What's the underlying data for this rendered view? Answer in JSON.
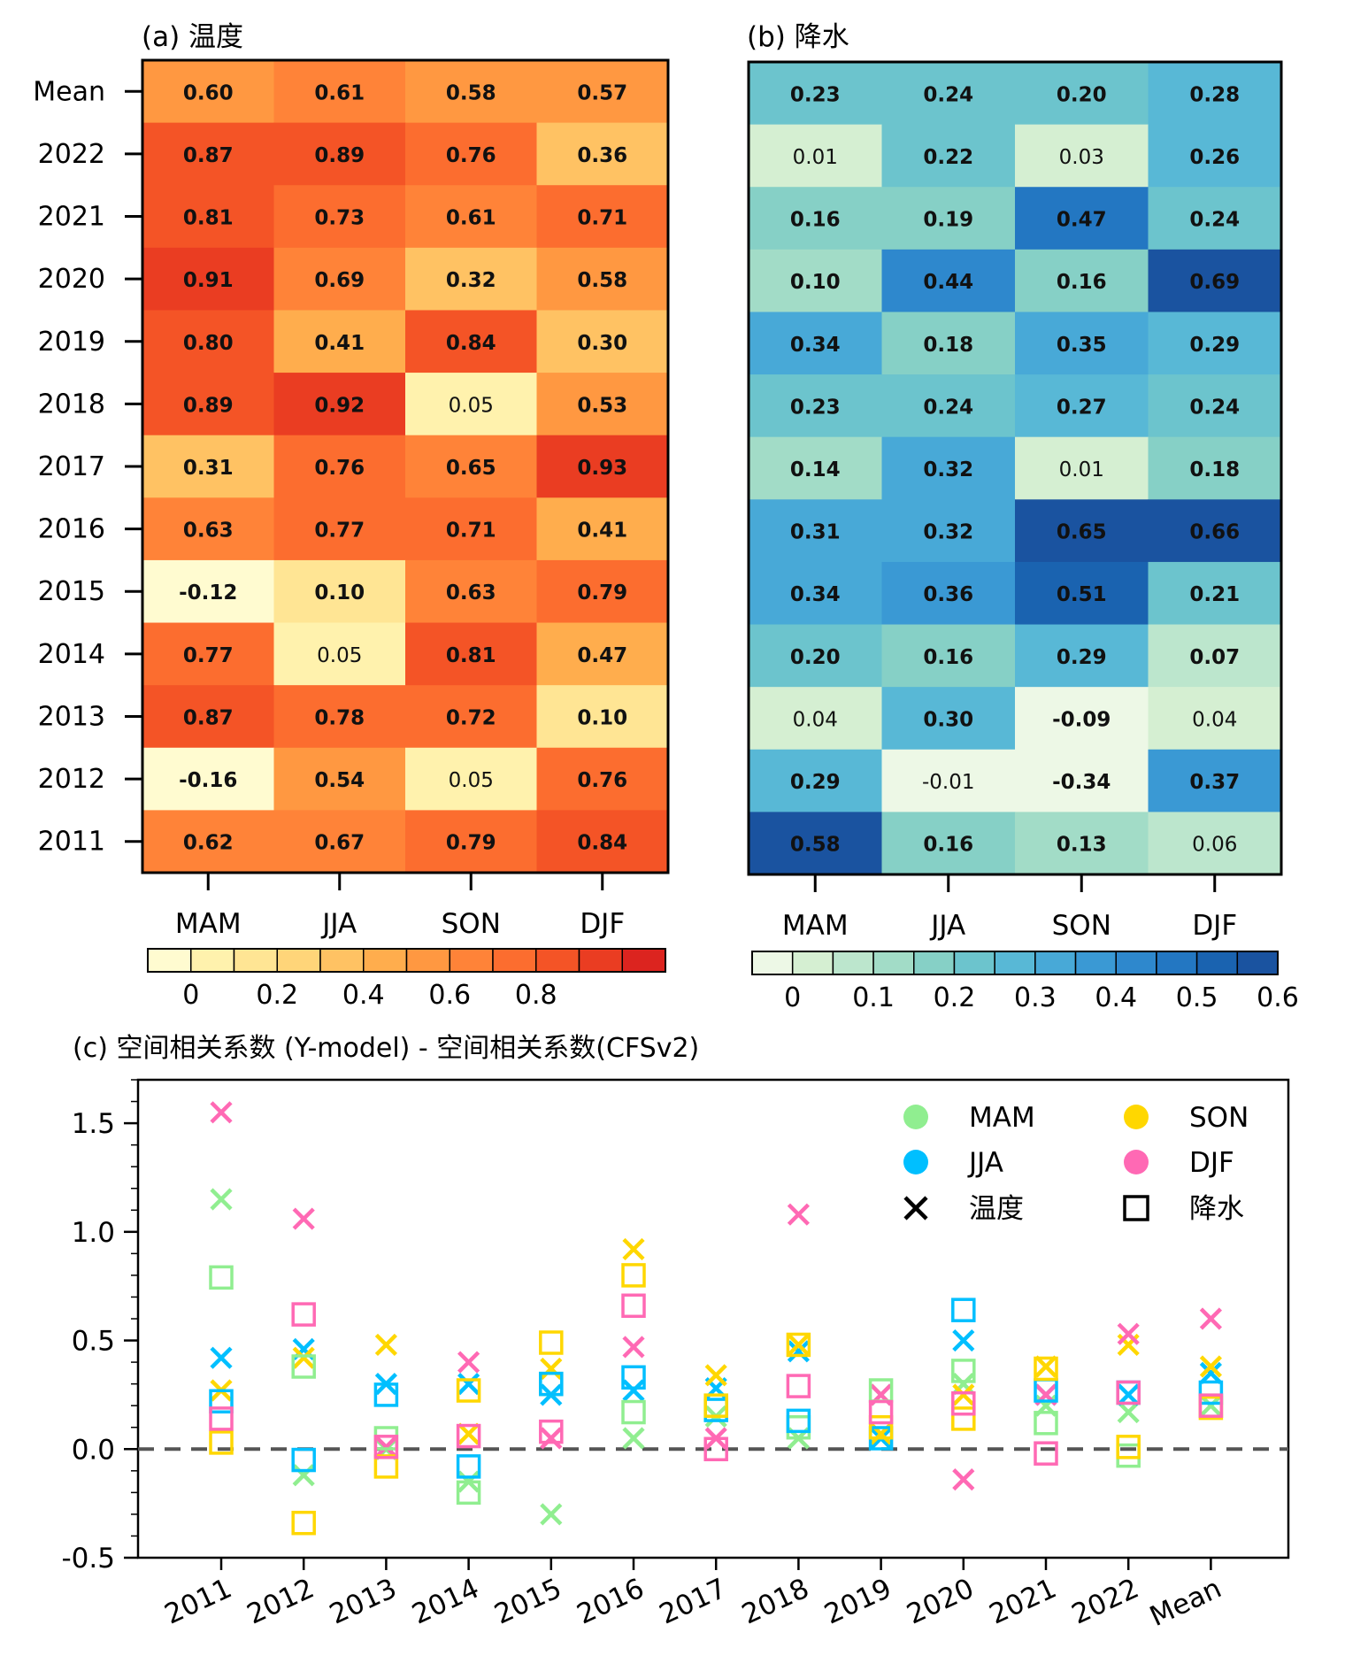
{
  "chart_data": [
    {
      "type": "heatmap",
      "title": "(a) 温度",
      "rows": [
        "Mean",
        "2022",
        "2021",
        "2020",
        "2019",
        "2018",
        "2017",
        "2016",
        "2015",
        "2014",
        "2013",
        "2012",
        "2011"
      ],
      "columns": [
        "MAM",
        "JJA",
        "SON",
        "DJF"
      ],
      "values": [
        [
          0.6,
          0.61,
          0.58,
          0.57
        ],
        [
          0.87,
          0.89,
          0.76,
          0.36
        ],
        [
          0.81,
          0.73,
          0.61,
          0.71
        ],
        [
          0.91,
          0.69,
          0.32,
          0.58
        ],
        [
          0.8,
          0.41,
          0.84,
          0.3
        ],
        [
          0.89,
          0.92,
          0.05,
          0.53
        ],
        [
          0.31,
          0.76,
          0.65,
          0.93
        ],
        [
          0.63,
          0.77,
          0.71,
          0.41
        ],
        [
          -0.12,
          0.1,
          0.63,
          0.79
        ],
        [
          0.77,
          0.05,
          0.81,
          0.47
        ],
        [
          0.87,
          0.78,
          0.72,
          0.1
        ],
        [
          -0.16,
          0.54,
          0.05,
          0.76
        ],
        [
          0.62,
          0.67,
          0.79,
          0.84
        ]
      ],
      "colorbar": {
        "ticks": [
          "0",
          "0.2",
          "0.4",
          "0.6",
          "0.8"
        ],
        "colors": [
          "#fffbd0",
          "#fff2ad",
          "#ffe594",
          "#ffd579",
          "#ffc263",
          "#ffad4d",
          "#ff9841",
          "#ff8338",
          "#fc6d2f",
          "#f45426",
          "#ea3d22",
          "#dc241f"
        ]
      }
    },
    {
      "type": "heatmap",
      "title": "(b) 降水",
      "rows": [
        "Mean",
        "2022",
        "2021",
        "2020",
        "2019",
        "2018",
        "2017",
        "2016",
        "2015",
        "2014",
        "2013",
        "2012",
        "2011"
      ],
      "columns": [
        "MAM",
        "JJA",
        "SON",
        "DJF"
      ],
      "values": [
        [
          0.23,
          0.24,
          0.2,
          0.28
        ],
        [
          0.01,
          0.22,
          0.03,
          0.26
        ],
        [
          0.16,
          0.19,
          0.47,
          0.24
        ],
        [
          0.1,
          0.44,
          0.16,
          0.69
        ],
        [
          0.34,
          0.18,
          0.35,
          0.29
        ],
        [
          0.23,
          0.24,
          0.27,
          0.24
        ],
        [
          0.14,
          0.32,
          0.01,
          0.18
        ],
        [
          0.31,
          0.32,
          0.65,
          0.66
        ],
        [
          0.34,
          0.36,
          0.51,
          0.21
        ],
        [
          0.2,
          0.16,
          0.29,
          0.07
        ],
        [
          0.04,
          0.3,
          -0.09,
          0.04
        ],
        [
          0.29,
          -0.01,
          -0.34,
          0.37
        ],
        [
          0.58,
          0.16,
          0.13,
          0.06
        ]
      ],
      "colorbar": {
        "ticks": [
          "0",
          "0.1",
          "0.2",
          "0.3",
          "0.4",
          "0.5",
          "0.6"
        ],
        "colors": [
          "#edf8e6",
          "#d5efd2",
          "#bce6cd",
          "#a2dcc7",
          "#86d0c6",
          "#6cc4cd",
          "#58b8d6",
          "#48a9d7",
          "#3a99d4",
          "#2e88cd",
          "#2377c2",
          "#1a63b0",
          "#1a53a0"
        ]
      }
    },
    {
      "type": "scatter",
      "title": "(c)   空间相关系数 (Y-model) - 空间相关系数(CFSv2)",
      "categories": [
        "2011",
        "2012",
        "2013",
        "2014",
        "2015",
        "2016",
        "2017",
        "2018",
        "2019",
        "2020",
        "2021",
        "2022",
        "Mean"
      ],
      "ylim": [
        -0.5,
        1.7
      ],
      "yticks": [
        "1.5",
        "1.0",
        "0.5",
        "0.0",
        "-0.5"
      ],
      "zero_line": "dashed",
      "legend": {
        "seasons": [
          {
            "name": "MAM",
            "color": "#90ee90"
          },
          {
            "name": "SON",
            "color": "#ffd700"
          },
          {
            "name": "JJA",
            "color": "#00bfff"
          },
          {
            "name": "DJF",
            "color": "#ff69b4"
          }
        ],
        "markers": [
          {
            "name": "温度",
            "symbol": "x"
          },
          {
            "name": "降水",
            "symbol": "square"
          }
        ]
      },
      "series": [
        {
          "name": "MAM",
          "marker": "x",
          "color": "#90ee90",
          "values": [
            1.15,
            -0.12,
            0.0,
            -0.15,
            -0.3,
            0.05,
            0.15,
            0.05,
            0.25,
            0.3,
            0.2,
            0.17,
            0.2
          ]
        },
        {
          "name": "JJA",
          "marker": "x",
          "color": "#00bfff",
          "values": [
            0.42,
            0.46,
            0.3,
            0.3,
            0.25,
            0.27,
            0.28,
            0.45,
            0.05,
            0.5,
            0.25,
            0.25,
            0.35
          ]
        },
        {
          "name": "SON",
          "marker": "x",
          "color": "#ffd700",
          "values": [
            0.27,
            0.42,
            0.48,
            0.07,
            0.37,
            0.92,
            0.34,
            0.48,
            0.07,
            0.25,
            0.38,
            0.48,
            0.38
          ]
        },
        {
          "name": "DJF",
          "marker": "x",
          "color": "#ff69b4",
          "values": [
            1.55,
            1.06,
            0.01,
            0.4,
            0.05,
            0.47,
            0.05,
            1.08,
            0.25,
            -0.14,
            0.25,
            0.53,
            0.6
          ]
        },
        {
          "name": "MAM",
          "marker": "square",
          "color": "#90ee90",
          "values": [
            0.79,
            0.38,
            0.05,
            -0.2,
            0.3,
            0.17,
            0.2,
            0.1,
            0.27,
            0.36,
            0.12,
            -0.03,
            0.2
          ]
        },
        {
          "name": "JJA",
          "marker": "square",
          "color": "#00bfff",
          "values": [
            0.22,
            -0.05,
            0.25,
            -0.08,
            0.3,
            0.33,
            0.18,
            0.13,
            0.05,
            0.64,
            0.27,
            0.26,
            0.26
          ]
        },
        {
          "name": "SON",
          "marker": "square",
          "color": "#ffd700",
          "values": [
            0.03,
            -0.34,
            -0.08,
            0.27,
            0.49,
            0.8,
            0.2,
            0.48,
            0.1,
            0.14,
            0.37,
            0.01,
            0.19
          ]
        },
        {
          "name": "DJF",
          "marker": "square",
          "color": "#ff69b4",
          "values": [
            0.14,
            0.62,
            0.01,
            0.06,
            0.08,
            0.66,
            0.0,
            0.29,
            0.17,
            0.21,
            -0.02,
            0.26,
            0.2
          ]
        }
      ]
    }
  ]
}
